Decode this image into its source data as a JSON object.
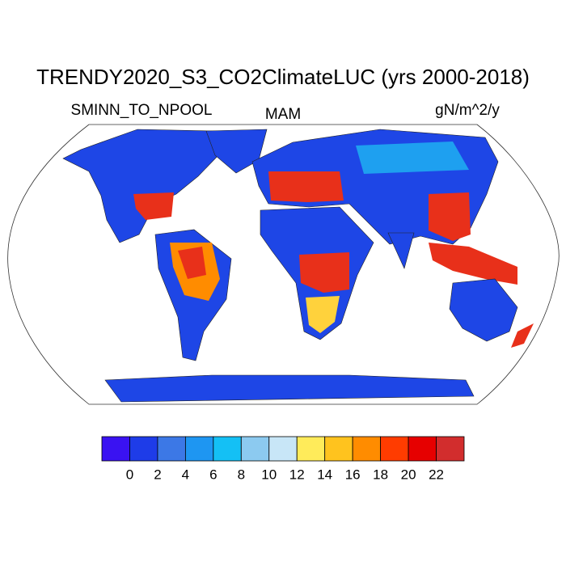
{
  "title": "TRENDY2020_S3_CO2ClimateLUC (yrs 2000-2018)",
  "left_label": "SMINN_TO_NPOOL",
  "center_label": "MAM",
  "right_label": "gN/m^2/y",
  "colorbar": {
    "colors": [
      "#3a12f2",
      "#1e3ce8",
      "#3c78e6",
      "#1e96f2",
      "#14c0f5",
      "#8ccaf0",
      "#c8e6f7",
      "#ffeb5a",
      "#ffc31e",
      "#ff8c00",
      "#ff3c00",
      "#e60000",
      "#d22d2d"
    ],
    "ticks": [
      0,
      2,
      4,
      6,
      8,
      10,
      12,
      14,
      16,
      18,
      20,
      22
    ]
  }
}
